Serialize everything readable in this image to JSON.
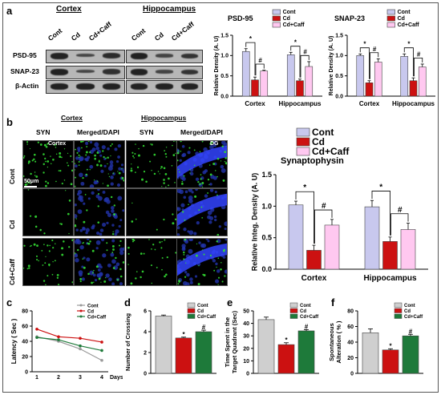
{
  "panels": {
    "a": "a",
    "b": "b",
    "c": "c",
    "d": "d",
    "e": "e",
    "f": "f"
  },
  "blot": {
    "cortex_title": "Cortex",
    "hippo_title": "Hippocampus",
    "lanes": [
      "Cont",
      "Cd",
      "Cd+Caff"
    ],
    "rows": [
      "PSD-95",
      "SNAP-23",
      "β-Actin"
    ]
  },
  "micro": {
    "group_cortex": "Cortex",
    "group_hippo": "Hippocampus",
    "col_labels": [
      "SYN",
      "Merged/DAPI",
      "SYN",
      "Merged/DAPI"
    ],
    "row_labels": [
      "Cont",
      "Cd",
      "Cd+Caff"
    ],
    "inset_cortex": "Cortex",
    "inset_dg": "DG",
    "scale": "50μm"
  },
  "colors": {
    "cont": "#c8c8ee",
    "cd": "#cc1111",
    "caff": "#ffc8f0",
    "blue": "#4444dd",
    "gray": "#cfcfcf",
    "green": "#1e7a3a"
  },
  "chart_data": [
    {
      "id": "psd95",
      "type": "bar",
      "title": "PSD-95",
      "ylabel": "Relative Density (A. U)",
      "ylim": [
        0,
        1.5
      ],
      "yticks": [
        "0.0",
        "0.5",
        "1.0",
        "1.5"
      ],
      "categories": [
        "Cortex",
        "Hippocampus"
      ],
      "legend": [
        "Cont",
        "Cd",
        "Cd+Caff"
      ],
      "series": [
        {
          "name": "Cont",
          "values": [
            1.1,
            1.02
          ]
        },
        {
          "name": "Cd",
          "values": [
            0.4,
            0.38
          ]
        },
        {
          "name": "Cd+Caff",
          "values": [
            0.62,
            0.73
          ]
        }
      ],
      "errors": [
        [
          0.07,
          0.06
        ],
        [
          0.07,
          0.04
        ],
        [
          0.02,
          0.12
        ]
      ],
      "marks": [
        "*",
        "#",
        "*",
        "#"
      ]
    },
    {
      "id": "snap23",
      "type": "bar",
      "title": "SNAP-23",
      "ylabel": "Relative Density (A. U)",
      "ylim": [
        0,
        1.5
      ],
      "yticks": [
        "0.0",
        "0.5",
        "1.0",
        "1.5"
      ],
      "categories": [
        "Cortex",
        "Hippocampus"
      ],
      "legend": [
        "Cont",
        "Cd",
        "Cd+Caff"
      ],
      "series": [
        {
          "name": "Cont",
          "values": [
            1.0,
            0.98
          ]
        },
        {
          "name": "Cd",
          "values": [
            0.33,
            0.38
          ]
        },
        {
          "name": "Cd+Caff",
          "values": [
            0.84,
            0.72
          ]
        }
      ],
      "errors": [
        [
          0.04,
          0.06
        ],
        [
          0.05,
          0.07
        ],
        [
          0.08,
          0.07
        ]
      ],
      "marks": [
        "*",
        "#",
        "*",
        "#"
      ]
    },
    {
      "id": "syn",
      "type": "bar",
      "title": "Synaptophysin",
      "ylabel": "Relative Integ. Density (A. U)",
      "ylim": [
        0,
        1.5
      ],
      "yticks": [
        "0.0",
        "0.5",
        "1.0",
        "1.5"
      ],
      "categories": [
        "Cortex",
        "Hippocampus"
      ],
      "legend": [
        "Cont",
        "Cd",
        "Cd+Caff"
      ],
      "series": [
        {
          "name": "Cont",
          "values": [
            1.02,
            0.99
          ]
        },
        {
          "name": "Cd",
          "values": [
            0.3,
            0.44
          ]
        },
        {
          "name": "Cd+Caff",
          "values": [
            0.7,
            0.63
          ]
        }
      ],
      "errors": [
        [
          0.06,
          0.1
        ],
        [
          0.08,
          0.07
        ],
        [
          0.09,
          0.1
        ]
      ],
      "marks": [
        "*",
        "#",
        "*",
        "#"
      ]
    },
    {
      "id": "latency",
      "type": "line",
      "ylabel": "Latency ( Sec )",
      "xlabel": "Days",
      "ylim": [
        0,
        80
      ],
      "yticks": [
        "0",
        "20",
        "40",
        "60",
        "80"
      ],
      "x": [
        1,
        2,
        3,
        4
      ],
      "legend": [
        "Cont",
        "Cd",
        "Cd+Caff"
      ],
      "series": [
        {
          "name": "Cont",
          "values": [
            46,
            40,
            30,
            15
          ]
        },
        {
          "name": "Cd",
          "values": [
            56,
            46,
            44,
            39
          ]
        },
        {
          "name": "Cd+Caff",
          "values": [
            45,
            42,
            34,
            28
          ]
        }
      ]
    },
    {
      "id": "crossing",
      "type": "bar",
      "ylabel": "Number of Crossing",
      "ylim": [
        0,
        6
      ],
      "yticks": [
        "0",
        "2",
        "4",
        "6"
      ],
      "legend": [
        "Cont",
        "Cd",
        "Cd+Caff"
      ],
      "values": [
        5.5,
        3.4,
        4.0
      ],
      "errors": [
        0.1,
        0.08,
        0.15
      ],
      "marks": [
        "",
        "*",
        "#"
      ]
    },
    {
      "id": "timespent",
      "type": "bar",
      "ylabel": "Time Spent in the Target Quadrant (Sec)",
      "ylim": [
        0,
        50
      ],
      "yticks": [
        "0",
        "10",
        "20",
        "30",
        "40",
        "50"
      ],
      "legend": [
        "Cont",
        "Cd",
        "Cd+Caff"
      ],
      "values": [
        43,
        23,
        34
      ],
      "errors": [
        2,
        1.5,
        1
      ],
      "marks": [
        "",
        "*",
        "#"
      ]
    },
    {
      "id": "alteration",
      "type": "bar",
      "ylabel": "Spontaneous Alteration ( % )",
      "ylim": [
        0,
        80
      ],
      "yticks": [
        "0",
        "20",
        "40",
        "60",
        "80"
      ],
      "legend": [
        "Cont",
        "Cd",
        "Cd+Caff"
      ],
      "values": [
        52,
        30,
        48
      ],
      "errors": [
        5,
        1.5,
        2
      ],
      "marks": [
        "",
        "*",
        "#"
      ]
    }
  ]
}
